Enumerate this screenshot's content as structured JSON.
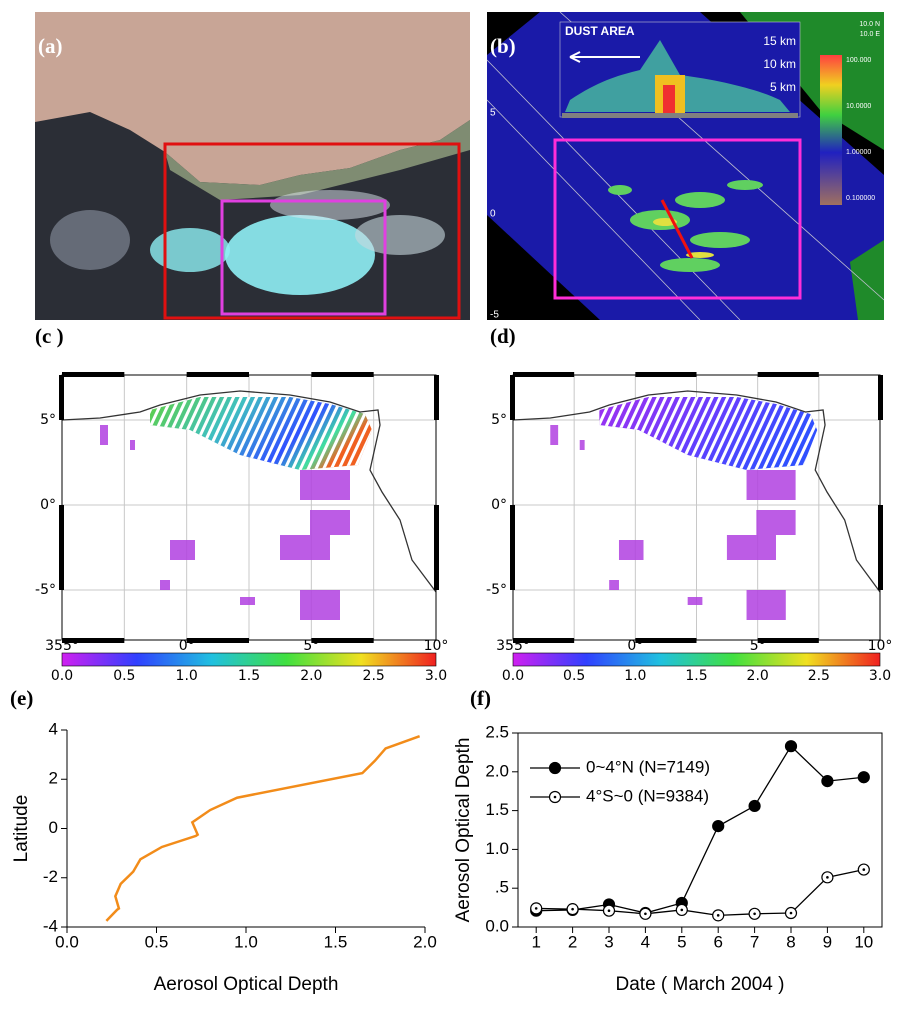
{
  "panels": {
    "a": {
      "label": "(a)"
    },
    "b": {
      "label": "(b)",
      "inset_title": "DUST AREA",
      "inset_heights": [
        "15 km",
        "10 km",
        "5 km"
      ],
      "colorbar_labels": [
        "100.000",
        "10.0000",
        "1.00000",
        "0.100000"
      ],
      "corner": [
        "10.0 N",
        "10.0 E"
      ],
      "lat_labels": [
        "5",
        "0",
        "-5"
      ]
    },
    "c": {
      "label": "(c )"
    },
    "d": {
      "label": "(d)"
    },
    "e": {
      "label": "(e)"
    },
    "f": {
      "label": "(f)"
    },
    "maps": {
      "lat_labels": [
        "5°",
        "0°",
        "-5°"
      ],
      "lon_labels": [
        "355°",
        "0°",
        "5°",
        "10°"
      ],
      "colorbar_labels": [
        "0.0",
        "0.5",
        "1.0",
        "1.5",
        "2.0",
        "2.5",
        "3.0"
      ]
    }
  },
  "chart_data": [
    {
      "type": "line",
      "x_label": "Aerosol Optical Depth",
      "y_label": "Latitude",
      "color": "#f28c1a",
      "x": [
        0.22,
        0.28,
        0.29,
        0.27,
        0.3,
        0.37,
        0.41,
        0.53,
        0.72,
        0.73,
        0.7,
        0.8,
        0.95,
        1.65,
        1.72,
        1.78,
        1.97
      ],
      "values": [
        -3.75,
        -3.3,
        -3.25,
        -2.75,
        -2.25,
        -1.75,
        -1.25,
        -0.75,
        -0.3,
        -0.25,
        0.25,
        0.75,
        1.25,
        2.25,
        2.75,
        3.25,
        3.75
      ],
      "xlim": [
        0,
        2
      ],
      "ylim": [
        -4,
        4
      ],
      "xticks": [
        {
          "value": 0,
          "label": "0.0"
        },
        0.5,
        {
          "value": 1,
          "label": "1.0"
        },
        1.5,
        {
          "value": 2,
          "label": "2.0"
        }
      ],
      "yticks": [
        -4,
        -2,
        0,
        2,
        4
      ]
    },
    {
      "type": "line",
      "x_label": "Date ( March 2004 )",
      "y_label": "Aerosol Optical Depth",
      "x": [
        1,
        2,
        3,
        4,
        5,
        6,
        7,
        8,
        9,
        10
      ],
      "series": [
        {
          "name": "0~4°N (N=7149)",
          "color": "#000000",
          "marker": "filled",
          "values": [
            0.21,
            0.22,
            0.29,
            0.18,
            0.31,
            1.3,
            1.56,
            2.33,
            1.88,
            1.93
          ]
        },
        {
          "name": "4°S~0 (N=9384)",
          "color": "#000000",
          "marker": "open",
          "values": [
            0.24,
            0.23,
            0.21,
            0.17,
            0.22,
            0.15,
            0.17,
            0.18,
            0.64,
            0.74
          ]
        }
      ],
      "xlim": [
        0.5,
        10.5
      ],
      "ylim": [
        0,
        2.5
      ],
      "xticks": [
        1,
        2,
        3,
        4,
        5,
        6,
        7,
        8,
        9,
        10
      ],
      "yticks": [
        {
          "value": 0,
          "label": "0.0"
        },
        {
          "value": 0.5,
          "label": ".5"
        },
        {
          "value": 1,
          "label": "1.0"
        },
        1.5,
        {
          "value": 2,
          "label": "2.0"
        },
        2.5
      ]
    }
  ]
}
